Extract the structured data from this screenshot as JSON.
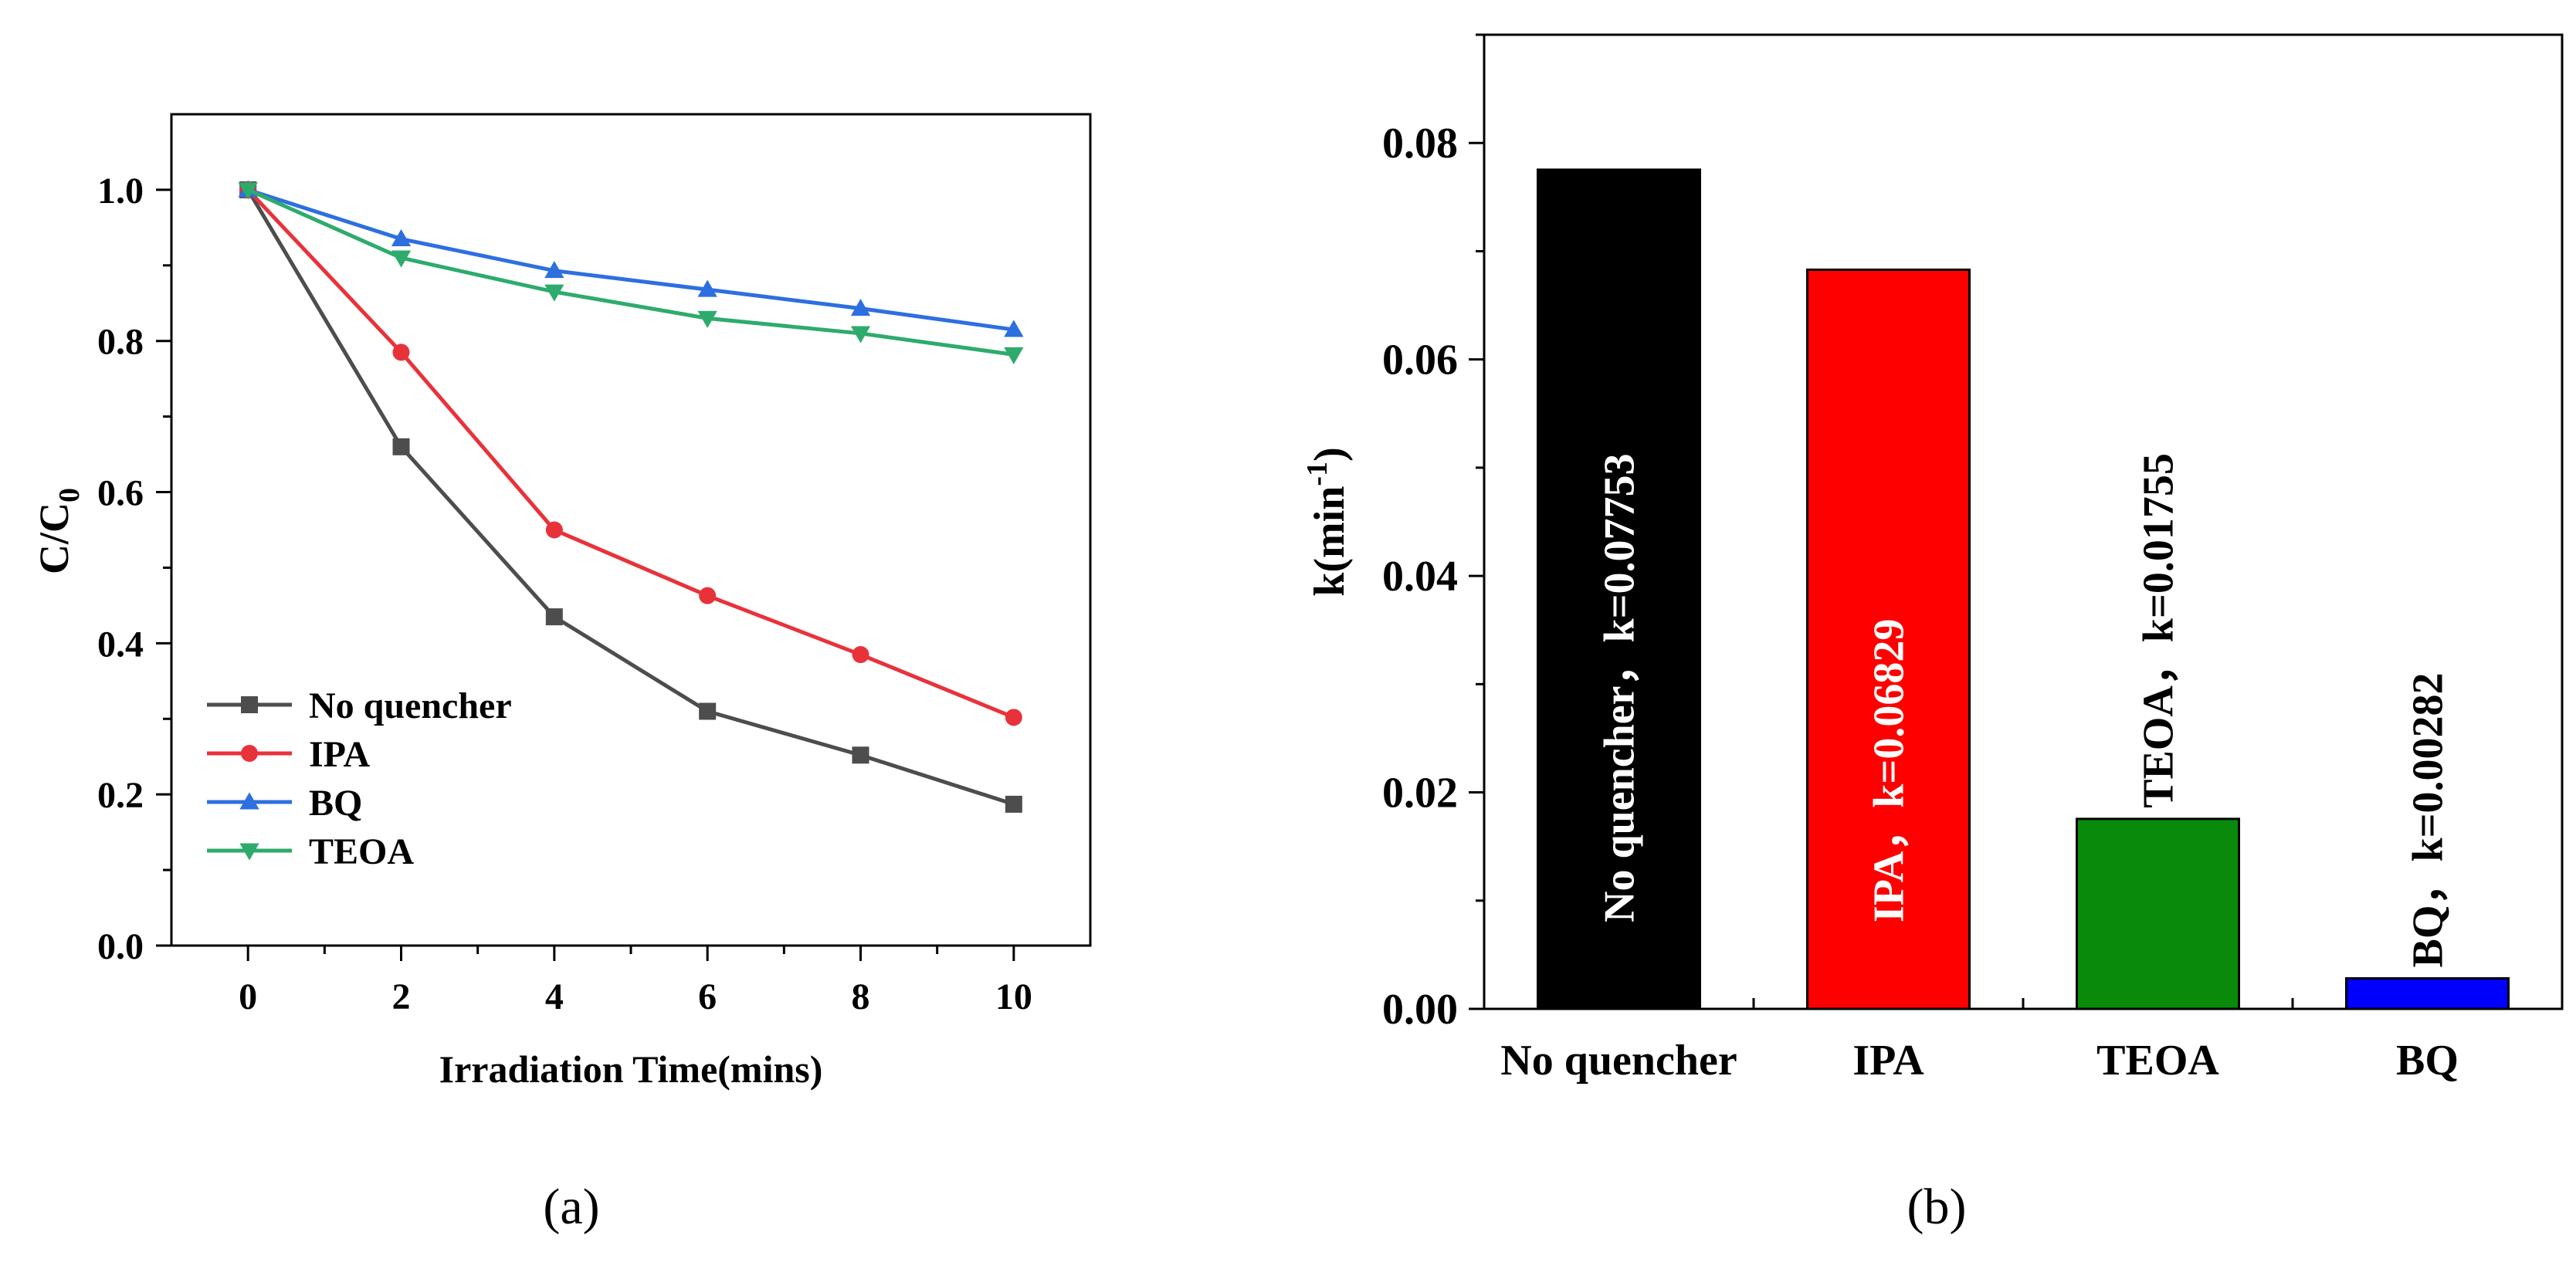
{
  "colors": {
    "no_quencher": "#4d4d4d",
    "ipa": "#e8323a",
    "bq": "#2d6fdf",
    "teoa": "#2eab6c",
    "bar_black": "#000000",
    "bar_red": "#ff0000",
    "bar_green": "#0a8a0a",
    "bar_blue": "#0000ff"
  },
  "chart_data": [
    {
      "panel": "(a)",
      "type": "line",
      "xlabel": "Irradiation Time(mins)",
      "ylabel_main": "C/C",
      "ylabel_sub": "0",
      "xlim": [
        -1,
        11
      ],
      "ylim": [
        0,
        1.1
      ],
      "xticks": [
        0,
        2,
        4,
        6,
        8,
        10
      ],
      "xtick_labels": [
        "0",
        "2",
        "4",
        "6",
        "8",
        "10"
      ],
      "yticks": [
        0,
        0.2,
        0.4,
        0.6,
        0.8,
        1.0
      ],
      "ytick_labels": [
        "0.0",
        "0.2",
        "0.4",
        "0.6",
        "0.8",
        "1.0"
      ],
      "x": [
        0,
        2,
        4,
        6,
        8,
        10
      ],
      "legend_position": "bottom-left",
      "series": [
        {
          "name": "No quencher",
          "marker": "square",
          "color_key": "no_quencher",
          "values": [
            1.0,
            0.66,
            0.435,
            0.31,
            0.252,
            0.187
          ]
        },
        {
          "name": "IPA",
          "marker": "circle",
          "color_key": "ipa",
          "values": [
            1.0,
            0.785,
            0.55,
            0.463,
            0.385,
            0.302
          ]
        },
        {
          "name": "BQ",
          "marker": "triangle-up",
          "color_key": "bq",
          "values": [
            1.0,
            0.935,
            0.893,
            0.868,
            0.843,
            0.815
          ]
        },
        {
          "name": "TEOA",
          "marker": "triangle-down",
          "color_key": "teoa",
          "values": [
            1.0,
            0.91,
            0.865,
            0.83,
            0.81,
            0.782
          ]
        }
      ]
    },
    {
      "panel": "(b)",
      "type": "bar",
      "ylabel": "k(min-1)",
      "ylabel_main": "k(min",
      "ylabel_sup": "-1",
      "ylabel_close": ")",
      "ylim": [
        0,
        0.09
      ],
      "yticks": [
        0,
        0.02,
        0.04,
        0.06,
        0.08
      ],
      "ytick_labels": [
        "0.00",
        "0.02",
        "0.04",
        "0.06",
        "0.08"
      ],
      "categories": [
        "No quencher",
        "IPA",
        "TEOA",
        "BQ"
      ],
      "values": [
        0.07753,
        0.06829,
        0.01755,
        0.00282
      ],
      "bar_color_keys": [
        "bar_black",
        "bar_red",
        "bar_green",
        "bar_blue"
      ],
      "bar_labels": [
        "No quencher，k=0.07753",
        "IPA，k=0.06829",
        "TEOA，k=0.01755",
        "BQ，k=0.00282"
      ]
    }
  ]
}
